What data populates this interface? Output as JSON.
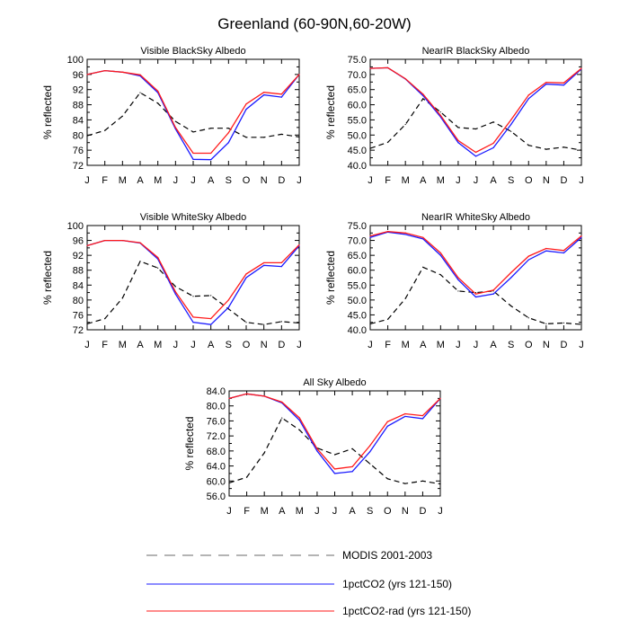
{
  "title": "Greenland (60-90N,60-20W)",
  "month_ticks": [
    "J",
    "F",
    "M",
    "A",
    "M",
    "J",
    "J",
    "A",
    "S",
    "O",
    "N",
    "D",
    "J"
  ],
  "ylabel": "% reflected",
  "colors": {
    "modis": "#000000",
    "series1": "#1a1aff",
    "series2": "#ff1a1a",
    "legend_dash": "#888888"
  },
  "legend": [
    {
      "label": "MODIS 2001-2003",
      "style": "dashed"
    },
    {
      "label": "1pctCO2 (yrs 121-150)",
      "style": "blue"
    },
    {
      "label": "1pctCO2-rad (yrs 121-150)",
      "style": "red"
    }
  ],
  "chart_data": [
    {
      "type": "line",
      "title": "Visible BlackSky Albedo",
      "ylabel": "% reflected",
      "ylim": [
        72,
        100
      ],
      "yticks": [
        "72",
        "76",
        "80",
        "84",
        "88",
        "92",
        "96",
        "100"
      ],
      "x": [
        1,
        2,
        3,
        4,
        5,
        6,
        7,
        8,
        9,
        10,
        11,
        12,
        13
      ],
      "series": [
        {
          "name": "MODIS 2001-2003",
          "values": [
            79.8,
            81.2,
            85.0,
            91.2,
            88.4,
            83.6,
            80.8,
            81.8,
            81.8,
            79.4,
            79.4,
            80.2,
            79.5
          ]
        },
        {
          "name": "1pctCO2 (yrs 121-150)",
          "values": [
            96.0,
            97.0,
            96.6,
            95.6,
            91.2,
            81.6,
            73.6,
            73.5,
            78.0,
            86.8,
            90.6,
            90.0,
            96.0
          ]
        },
        {
          "name": "1pctCO2-rad (yrs 121-150)",
          "values": [
            96.0,
            97.0,
            96.6,
            95.9,
            91.6,
            82.0,
            75.2,
            75.2,
            80.6,
            88.2,
            91.3,
            90.8,
            96.0
          ]
        }
      ]
    },
    {
      "type": "line",
      "title": "NearIR BlackSky Albedo",
      "ylabel": "% reflected",
      "ylim": [
        40,
        75
      ],
      "yticks": [
        "40.0",
        "45.0",
        "50.0",
        "55.0",
        "60.0",
        "65.0",
        "70.0",
        "75.0"
      ],
      "x": [
        1,
        2,
        3,
        4,
        5,
        6,
        7,
        8,
        9,
        10,
        11,
        12,
        13
      ],
      "series": [
        {
          "name": "MODIS 2001-2003",
          "values": [
            45.6,
            47.6,
            53.5,
            62.0,
            57.6,
            52.5,
            52.0,
            54.3,
            51.2,
            46.6,
            45.3,
            46.0,
            45.0
          ]
        },
        {
          "name": "1pctCO2 (yrs 121-150)",
          "values": [
            72.0,
            72.2,
            68.5,
            63.0,
            56.0,
            47.5,
            43.0,
            45.8,
            53.5,
            62.0,
            66.8,
            66.5,
            71.8
          ]
        },
        {
          "name": "1pctCO2-rad (yrs 121-150)",
          "values": [
            72.0,
            72.2,
            68.6,
            63.5,
            56.5,
            48.2,
            44.3,
            47.3,
            55.0,
            63.2,
            67.4,
            67.2,
            72.0
          ]
        }
      ]
    },
    {
      "type": "line",
      "title": "Visible WhiteSky Albedo",
      "ylabel": "% reflected",
      "ylim": [
        72,
        100
      ],
      "yticks": [
        "72",
        "76",
        "80",
        "84",
        "88",
        "92",
        "96",
        "100"
      ],
      "x": [
        1,
        2,
        3,
        4,
        5,
        6,
        7,
        8,
        9,
        10,
        11,
        12,
        13
      ],
      "series": [
        {
          "name": "MODIS 2001-2003",
          "values": [
            73.6,
            75.0,
            80.5,
            90.4,
            88.6,
            83.6,
            81.0,
            81.2,
            77.6,
            74.0,
            73.4,
            74.2,
            73.8
          ]
        },
        {
          "name": "1pctCO2 (yrs 121-150)",
          "values": [
            94.6,
            96.0,
            96.0,
            95.3,
            91.0,
            81.6,
            74.0,
            73.4,
            78.0,
            86.0,
            89.3,
            89.0,
            94.6
          ]
        },
        {
          "name": "1pctCO2-rad (yrs 121-150)",
          "values": [
            94.6,
            96.0,
            96.0,
            95.4,
            91.4,
            82.2,
            75.4,
            75.0,
            80.0,
            87.0,
            90.0,
            90.0,
            94.8
          ]
        }
      ]
    },
    {
      "type": "line",
      "title": "NearIR WhiteSky Albedo",
      "ylabel": "% reflected",
      "ylim": [
        40,
        75
      ],
      "yticks": [
        "40.0",
        "45.0",
        "50.0",
        "55.0",
        "60.0",
        "65.0",
        "70.0",
        "75.0"
      ],
      "x": [
        1,
        2,
        3,
        4,
        5,
        6,
        7,
        8,
        9,
        10,
        11,
        12,
        13
      ],
      "series": [
        {
          "name": "MODIS 2001-2003",
          "values": [
            42.0,
            43.5,
            50.5,
            61.0,
            58.5,
            53.0,
            52.5,
            53.0,
            48.0,
            44.0,
            42.0,
            42.3,
            41.8
          ]
        },
        {
          "name": "1pctCO2 (yrs 121-150)",
          "values": [
            71.0,
            72.8,
            72.0,
            70.5,
            65.0,
            56.8,
            51.0,
            52.0,
            57.5,
            63.5,
            66.5,
            65.8,
            71.0
          ]
        },
        {
          "name": "1pctCO2-rad (yrs 121-150)",
          "values": [
            71.5,
            73.0,
            72.5,
            71.0,
            65.8,
            57.5,
            52.0,
            53.3,
            59.2,
            64.7,
            67.3,
            66.6,
            71.5
          ]
        }
      ]
    },
    {
      "type": "line",
      "title": "All Sky Albedo",
      "ylabel": "% reflected",
      "ylim": [
        56,
        84
      ],
      "yticks": [
        "56.0",
        "60.0",
        "64.0",
        "68.0",
        "72.0",
        "76.0",
        "80.0",
        "84.0"
      ],
      "x": [
        1,
        2,
        3,
        4,
        5,
        6,
        7,
        8,
        9,
        10,
        11,
        12,
        13
      ],
      "series": [
        {
          "name": "MODIS 2001-2003",
          "values": [
            59.5,
            61.0,
            67.5,
            76.8,
            73.6,
            68.8,
            67.0,
            68.6,
            64.6,
            60.6,
            59.3,
            60.0,
            59.2
          ]
        },
        {
          "name": "1pctCO2 (yrs 121-150)",
          "values": [
            82.0,
            83.2,
            82.6,
            80.8,
            76.2,
            68.0,
            62.0,
            62.5,
            67.8,
            74.6,
            77.2,
            76.6,
            82.0
          ]
        },
        {
          "name": "1pctCO2-rad (yrs 121-150)",
          "values": [
            82.0,
            83.2,
            82.6,
            81.0,
            76.8,
            68.6,
            63.2,
            63.8,
            69.4,
            75.8,
            77.9,
            77.4,
            82.0
          ]
        }
      ]
    }
  ]
}
